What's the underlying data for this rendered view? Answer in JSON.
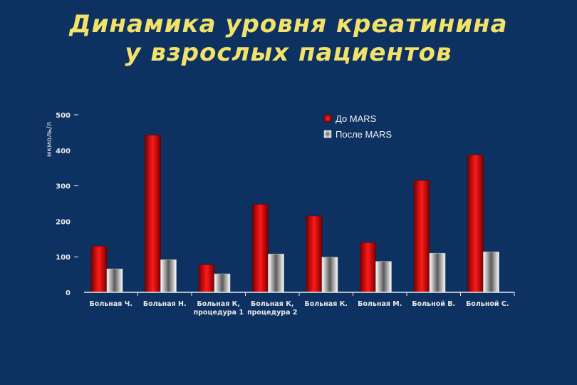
{
  "title_line1": "Динамика уровня креатинина",
  "title_line2": "у взрослых пациентов",
  "chart_data": {
    "type": "bar",
    "ylabel": "мкмоль/л",
    "ylim": [
      0,
      500
    ],
    "yticks": [
      0,
      100,
      200,
      300,
      400,
      500
    ],
    "categories": [
      [
        "Больная Ч."
      ],
      [
        "Больная Н."
      ],
      [
        "Больная К,",
        "процедура 1"
      ],
      [
        "Больная К,",
        "процедура 2"
      ],
      [
        "Больная К."
      ],
      [
        "Больная М."
      ],
      [
        "Больной В."
      ],
      [
        "Больной С."
      ]
    ],
    "series": [
      {
        "name": "До MARS",
        "color": "#e01010",
        "values": [
          130,
          443,
          78,
          248,
          215,
          140,
          315,
          387
        ]
      },
      {
        "name": "После MARS",
        "color": "#e8e8e8",
        "values": [
          66,
          92,
          52,
          108,
          99,
          87,
          110,
          114
        ]
      }
    ],
    "legend_position": "top-right",
    "grid": false
  }
}
